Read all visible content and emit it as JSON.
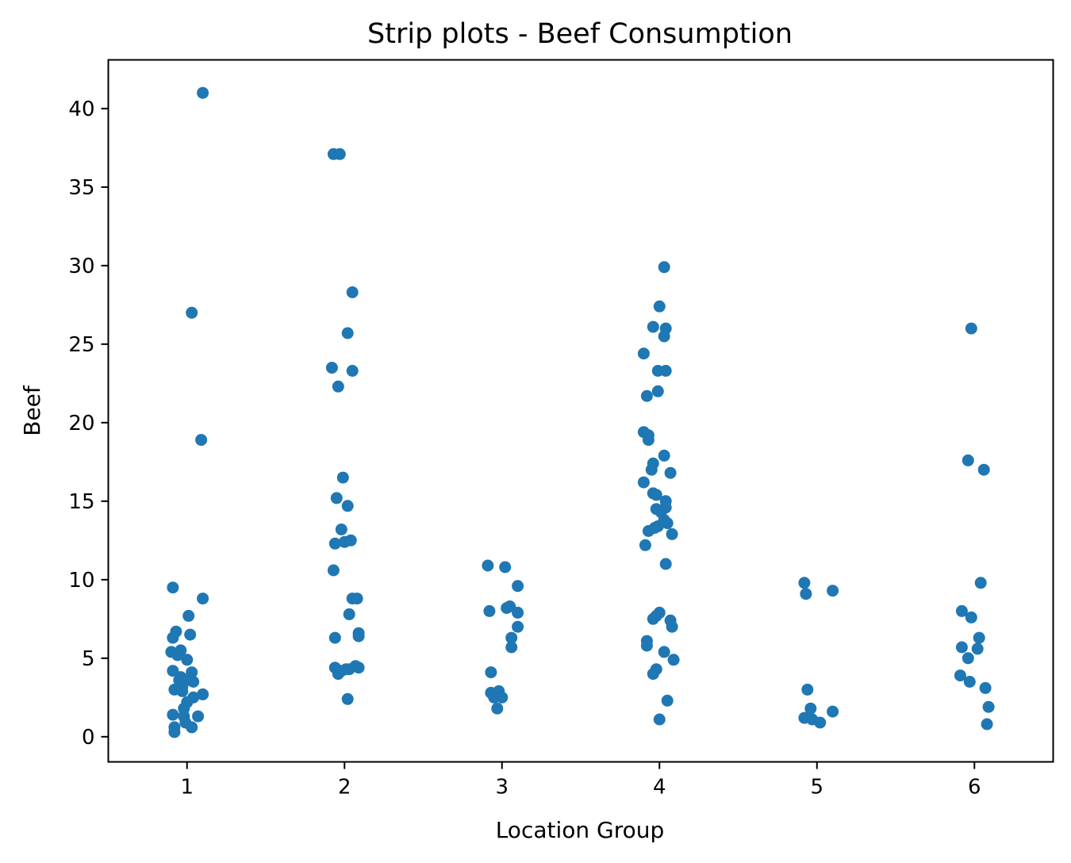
{
  "chart_data": {
    "type": "scatter",
    "subtype": "strip",
    "title": "Strip plots - Beef Consumption",
    "xlabel": "Location Group",
    "ylabel": "Beef",
    "categories": [
      "1",
      "2",
      "3",
      "4",
      "5",
      "6"
    ],
    "xlim": [
      0.5,
      6.5
    ],
    "ylim": [
      -1.6,
      43.1
    ],
    "yticks": [
      0,
      5,
      10,
      15,
      20,
      25,
      30,
      35,
      40
    ],
    "grid": false,
    "legend": "none",
    "marker_color": "#1f77b4",
    "points": [
      {
        "x": 1.1,
        "y": 41.0
      },
      {
        "x": 1.03,
        "y": 27.0
      },
      {
        "x": 1.09,
        "y": 18.9
      },
      {
        "x": 0.91,
        "y": 9.5
      },
      {
        "x": 1.1,
        "y": 8.8
      },
      {
        "x": 1.01,
        "y": 7.7
      },
      {
        "x": 0.93,
        "y": 6.7
      },
      {
        "x": 1.02,
        "y": 6.5
      },
      {
        "x": 0.91,
        "y": 6.3
      },
      {
        "x": 0.9,
        "y": 5.4
      },
      {
        "x": 0.96,
        "y": 5.5
      },
      {
        "x": 0.94,
        "y": 5.2
      },
      {
        "x": 1.0,
        "y": 4.9
      },
      {
        "x": 0.91,
        "y": 4.2
      },
      {
        "x": 1.03,
        "y": 4.1
      },
      {
        "x": 0.96,
        "y": 3.8
      },
      {
        "x": 0.95,
        "y": 3.6
      },
      {
        "x": 1.0,
        "y": 3.6
      },
      {
        "x": 1.04,
        "y": 3.5
      },
      {
        "x": 0.97,
        "y": 3.2
      },
      {
        "x": 0.92,
        "y": 3.0
      },
      {
        "x": 0.97,
        "y": 2.9
      },
      {
        "x": 1.1,
        "y": 2.7
      },
      {
        "x": 1.04,
        "y": 2.5
      },
      {
        "x": 1.0,
        "y": 2.2
      },
      {
        "x": 0.98,
        "y": 1.8
      },
      {
        "x": 0.91,
        "y": 1.4
      },
      {
        "x": 0.98,
        "y": 1.3
      },
      {
        "x": 1.07,
        "y": 1.3
      },
      {
        "x": 0.99,
        "y": 0.9
      },
      {
        "x": 0.92,
        "y": 0.6
      },
      {
        "x": 1.03,
        "y": 0.6
      },
      {
        "x": 0.92,
        "y": 0.3
      },
      {
        "x": 1.93,
        "y": 37.1
      },
      {
        "x": 1.97,
        "y": 37.1
      },
      {
        "x": 2.05,
        "y": 28.3
      },
      {
        "x": 2.02,
        "y": 25.7
      },
      {
        "x": 1.92,
        "y": 23.5
      },
      {
        "x": 2.05,
        "y": 23.3
      },
      {
        "x": 1.96,
        "y": 22.3
      },
      {
        "x": 1.99,
        "y": 16.5
      },
      {
        "x": 1.95,
        "y": 15.2
      },
      {
        "x": 2.02,
        "y": 14.7
      },
      {
        "x": 1.98,
        "y": 13.2
      },
      {
        "x": 1.94,
        "y": 12.3
      },
      {
        "x": 2.0,
        "y": 12.4
      },
      {
        "x": 2.04,
        "y": 12.5
      },
      {
        "x": 1.93,
        "y": 10.6
      },
      {
        "x": 2.05,
        "y": 8.8
      },
      {
        "x": 2.08,
        "y": 8.8
      },
      {
        "x": 2.03,
        "y": 7.8
      },
      {
        "x": 2.09,
        "y": 6.6
      },
      {
        "x": 2.09,
        "y": 6.4
      },
      {
        "x": 1.94,
        "y": 6.3
      },
      {
        "x": 2.07,
        "y": 4.5
      },
      {
        "x": 1.94,
        "y": 4.4
      },
      {
        "x": 1.98,
        "y": 4.2
      },
      {
        "x": 2.01,
        "y": 4.3
      },
      {
        "x": 2.03,
        "y": 4.3
      },
      {
        "x": 2.09,
        "y": 4.4
      },
      {
        "x": 1.96,
        "y": 4.0
      },
      {
        "x": 2.02,
        "y": 2.4
      },
      {
        "x": 2.91,
        "y": 10.9
      },
      {
        "x": 3.02,
        "y": 10.8
      },
      {
        "x": 3.1,
        "y": 9.6
      },
      {
        "x": 3.05,
        "y": 8.3
      },
      {
        "x": 3.03,
        "y": 8.2
      },
      {
        "x": 2.92,
        "y": 8.0
      },
      {
        "x": 3.1,
        "y": 7.9
      },
      {
        "x": 3.1,
        "y": 7.0
      },
      {
        "x": 3.06,
        "y": 6.3
      },
      {
        "x": 3.06,
        "y": 5.7
      },
      {
        "x": 2.93,
        "y": 4.1
      },
      {
        "x": 2.93,
        "y": 2.8
      },
      {
        "x": 2.98,
        "y": 2.9
      },
      {
        "x": 2.95,
        "y": 2.5
      },
      {
        "x": 3.0,
        "y": 2.5
      },
      {
        "x": 2.97,
        "y": 1.8
      },
      {
        "x": 4.03,
        "y": 29.9
      },
      {
        "x": 4.0,
        "y": 27.4
      },
      {
        "x": 3.96,
        "y": 26.1
      },
      {
        "x": 4.04,
        "y": 26.0
      },
      {
        "x": 4.03,
        "y": 25.5
      },
      {
        "x": 3.9,
        "y": 24.4
      },
      {
        "x": 3.99,
        "y": 23.3
      },
      {
        "x": 4.04,
        "y": 23.3
      },
      {
        "x": 3.99,
        "y": 22.0
      },
      {
        "x": 3.92,
        "y": 21.7
      },
      {
        "x": 3.9,
        "y": 19.4
      },
      {
        "x": 3.93,
        "y": 19.2
      },
      {
        "x": 3.93,
        "y": 18.9
      },
      {
        "x": 4.03,
        "y": 17.9
      },
      {
        "x": 3.96,
        "y": 17.4
      },
      {
        "x": 3.95,
        "y": 17.0
      },
      {
        "x": 4.07,
        "y": 16.8
      },
      {
        "x": 3.9,
        "y": 16.2
      },
      {
        "x": 3.96,
        "y": 15.5
      },
      {
        "x": 3.98,
        "y": 15.4
      },
      {
        "x": 4.04,
        "y": 15.0
      },
      {
        "x": 4.04,
        "y": 14.6
      },
      {
        "x": 3.98,
        "y": 14.5
      },
      {
        "x": 4.01,
        "y": 14.3
      },
      {
        "x": 4.03,
        "y": 13.8
      },
      {
        "x": 4.05,
        "y": 13.6
      },
      {
        "x": 3.99,
        "y": 13.4
      },
      {
        "x": 3.93,
        "y": 13.1
      },
      {
        "x": 3.97,
        "y": 13.3
      },
      {
        "x": 4.08,
        "y": 12.9
      },
      {
        "x": 3.91,
        "y": 12.2
      },
      {
        "x": 4.04,
        "y": 11.0
      },
      {
        "x": 4.0,
        "y": 7.9
      },
      {
        "x": 3.98,
        "y": 7.7
      },
      {
        "x": 3.96,
        "y": 7.5
      },
      {
        "x": 4.07,
        "y": 7.4
      },
      {
        "x": 4.08,
        "y": 7.0
      },
      {
        "x": 3.92,
        "y": 6.1
      },
      {
        "x": 3.92,
        "y": 5.8
      },
      {
        "x": 4.03,
        "y": 5.4
      },
      {
        "x": 4.09,
        "y": 4.9
      },
      {
        "x": 3.98,
        "y": 4.3
      },
      {
        "x": 3.96,
        "y": 4.0
      },
      {
        "x": 4.05,
        "y": 2.3
      },
      {
        "x": 4.0,
        "y": 1.1
      },
      {
        "x": 4.92,
        "y": 9.8
      },
      {
        "x": 5.1,
        "y": 9.3
      },
      {
        "x": 4.93,
        "y": 9.1
      },
      {
        "x": 4.94,
        "y": 3.0
      },
      {
        "x": 4.96,
        "y": 1.8
      },
      {
        "x": 5.1,
        "y": 1.6
      },
      {
        "x": 4.92,
        "y": 1.2
      },
      {
        "x": 4.97,
        "y": 1.1
      },
      {
        "x": 5.02,
        "y": 0.9
      },
      {
        "x": 5.98,
        "y": 26.0
      },
      {
        "x": 5.96,
        "y": 17.6
      },
      {
        "x": 6.06,
        "y": 17.0
      },
      {
        "x": 6.04,
        "y": 9.8
      },
      {
        "x": 5.92,
        "y": 8.0
      },
      {
        "x": 5.98,
        "y": 7.6
      },
      {
        "x": 6.03,
        "y": 6.3
      },
      {
        "x": 5.92,
        "y": 5.7
      },
      {
        "x": 6.02,
        "y": 5.6
      },
      {
        "x": 5.96,
        "y": 5.0
      },
      {
        "x": 5.91,
        "y": 3.9
      },
      {
        "x": 5.97,
        "y": 3.5
      },
      {
        "x": 6.07,
        "y": 3.1
      },
      {
        "x": 6.09,
        "y": 1.9
      },
      {
        "x": 6.08,
        "y": 0.8
      }
    ]
  }
}
